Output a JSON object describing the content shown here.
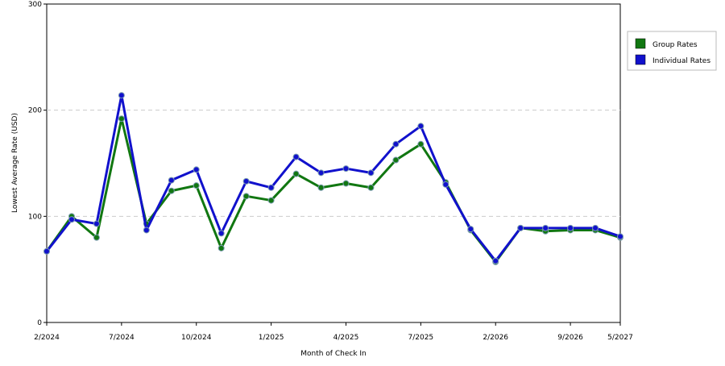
{
  "chart_data": {
    "type": "line",
    "x_label": "Month of Check In",
    "y_label": "Lowest Average Rate (USD)",
    "categories": [
      "2/2024",
      null,
      null,
      "7/2024",
      null,
      null,
      "10/2024",
      null,
      null,
      "1/2025",
      null,
      null,
      "4/2025",
      null,
      null,
      "7/2025",
      null,
      null,
      "2/2026",
      null,
      null,
      "9/2026",
      null,
      "5/2027"
    ],
    "series": [
      {
        "name": "Group Rates",
        "color": "#117711",
        "values": [
          67,
          100,
          80,
          192,
          93,
          124,
          129,
          70,
          119,
          115,
          140,
          127,
          131,
          127,
          153,
          168,
          132,
          87,
          57,
          89,
          86,
          87,
          87,
          80
        ]
      },
      {
        "name": "Individual Rates",
        "color": "#1111cc",
        "values": [
          67,
          97,
          93,
          214,
          87,
          134,
          144,
          84,
          133,
          127,
          156,
          141,
          145,
          141,
          168,
          185,
          130,
          88,
          58,
          89,
          89,
          89,
          89,
          81
        ]
      }
    ],
    "ylim": [
      0,
      300
    ],
    "yticks": [
      0,
      100,
      200,
      300
    ],
    "grid": true,
    "legend": "top-right"
  }
}
